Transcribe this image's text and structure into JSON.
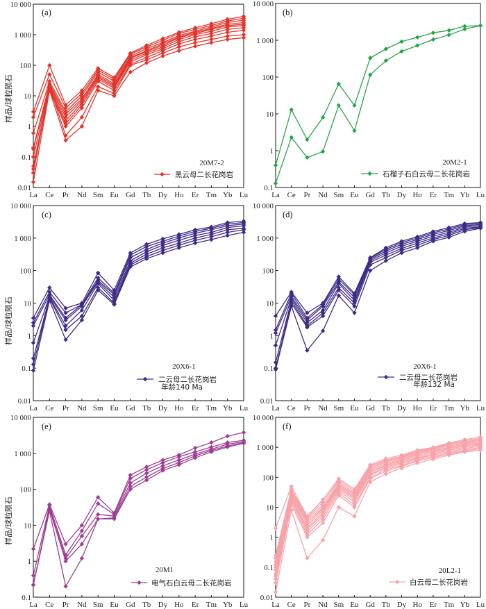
{
  "chart_data": [
    {
      "panel": "(a)",
      "type": "line",
      "yscale": "log",
      "ylim": [
        0.01,
        10000
      ],
      "ylabel": "样品/球粒陨石",
      "categories": [
        "La",
        "Ce",
        "Pr",
        "Nd",
        "Sm",
        "Eu",
        "Gd",
        "Tb",
        "Dy",
        "Ho",
        "Er",
        "Tm",
        "Yb",
        "Lu"
      ],
      "yticks": [
        {
          "value": 10000,
          "label": "10 000"
        },
        {
          "value": 1000,
          "label": "1 000"
        },
        {
          "value": 100,
          "label": "100"
        },
        {
          "value": 10,
          "label": "10"
        },
        {
          "value": 1,
          "label": "1"
        },
        {
          "value": 0.1,
          "label": "0.1"
        },
        {
          "value": 0.01,
          "label": "0.01"
        }
      ],
      "sample": "20M7-2",
      "legend": "黑云母二长花岗岩",
      "color": "#e2342c",
      "series": [
        {
          "values": [
            3,
            100,
            5,
            15,
            80,
            40,
            250,
            450,
            750,
            1200,
            1700,
            2300,
            3200,
            4000
          ]
        },
        {
          "values": [
            2,
            50,
            4,
            12,
            70,
            35,
            230,
            400,
            650,
            1100,
            1500,
            2000,
            2800,
            3500
          ]
        },
        {
          "values": [
            0.6,
            30,
            3,
            10,
            60,
            30,
            200,
            350,
            550,
            950,
            1300,
            1800,
            2500,
            3000
          ]
        },
        {
          "values": [
            0.2,
            25,
            2.5,
            8,
            50,
            25,
            180,
            300,
            500,
            850,
            1200,
            1600,
            2200,
            2500
          ]
        },
        {
          "values": [
            0.18,
            22,
            2,
            7,
            45,
            22,
            170,
            280,
            450,
            800,
            1100,
            1500,
            2000,
            2200
          ]
        },
        {
          "values": [
            0.1,
            20,
            1.5,
            6,
            40,
            20,
            150,
            250,
            400,
            700,
            1000,
            1300,
            1800,
            2000
          ]
        },
        {
          "values": [
            0.05,
            18,
            1.2,
            5,
            35,
            18,
            130,
            220,
            350,
            600,
            850,
            1100,
            1500,
            1700
          ]
        },
        {
          "values": [
            0.04,
            15,
            1,
            4,
            30,
            15,
            110,
            180,
            300,
            500,
            700,
            900,
            1200,
            1400
          ]
        },
        {
          "values": [
            0.03,
            20,
            0.5,
            2,
            20,
            12,
            100,
            150,
            250,
            400,
            550,
            700,
            900,
            1000
          ]
        },
        {
          "values": [
            0.015,
            15,
            0.35,
            1,
            15,
            10,
            60,
            120,
            200,
            300,
            420,
            550,
            700,
            800
          ]
        }
      ]
    },
    {
      "panel": "(b)",
      "type": "line",
      "yscale": "log",
      "ylim": [
        0.1,
        10000
      ],
      "ylabel": "",
      "categories": [
        "La",
        "Ce",
        "Pr",
        "Nd",
        "Sm",
        "Eu",
        "Gd",
        "Tb",
        "Dy",
        "Ho",
        "Er",
        "Tm",
        "Yb",
        "Lu"
      ],
      "yticks": [
        {
          "value": 10000,
          "label": "10 000"
        },
        {
          "value": 1000,
          "label": "1 000"
        },
        {
          "value": 100,
          "label": "100"
        },
        {
          "value": 10,
          "label": "10"
        },
        {
          "value": 1,
          "label": "1"
        },
        {
          "value": 0.1,
          "label": "0.1"
        }
      ],
      "sample": "20M2-1",
      "legend": "石榴子石白云母二长花岗岩",
      "color": "#23a544",
      "series": [
        {
          "values": [
            0.4,
            13,
            2,
            8,
            65,
            17,
            330,
            580,
            920,
            1200,
            1600,
            1850,
            2400,
            2500
          ]
        },
        {
          "values": [
            0.13,
            2.3,
            0.65,
            0.95,
            17,
            3.5,
            115,
            280,
            500,
            720,
            1050,
            1400,
            2000,
            2500
          ]
        }
      ]
    },
    {
      "panel": "(c)",
      "type": "line",
      "yscale": "log",
      "ylim": [
        0.01,
        10000
      ],
      "ylabel": "样品/球粒陨石",
      "categories": [
        "La",
        "Ce",
        "Pr",
        "Nd",
        "Sm",
        "Eu",
        "Gd",
        "Tb",
        "Dy",
        "Ho",
        "Er",
        "Tm",
        "Yb",
        "Lu"
      ],
      "yticks": [
        {
          "value": 10000,
          "label": "10 000"
        },
        {
          "value": 1000,
          "label": "1 000"
        },
        {
          "value": 100,
          "label": "100"
        },
        {
          "value": 10,
          "label": "10"
        },
        {
          "value": 1,
          "label": "1"
        },
        {
          "value": 0.1,
          "label": "0.1"
        },
        {
          "value": 0.01,
          "label": "0.01"
        }
      ],
      "sample": "20X6-1",
      "legend": "二云母二长花岗岩",
      "note": "年龄140 Ma",
      "color": "#3d2b86",
      "series": [
        {
          "values": [
            3.5,
            30,
            7,
            10,
            85,
            25,
            350,
            650,
            950,
            1300,
            1800,
            2200,
            3000,
            3300
          ]
        },
        {
          "values": [
            2.5,
            22,
            5,
            9,
            60,
            20,
            300,
            550,
            800,
            1150,
            1600,
            2000,
            2700,
            3000
          ]
        },
        {
          "values": [
            2,
            18,
            3.5,
            9,
            50,
            18,
            250,
            450,
            700,
            1000,
            1400,
            1800,
            2400,
            2700
          ]
        },
        {
          "values": [
            0.6,
            16,
            3,
            8,
            45,
            15,
            200,
            380,
            600,
            850,
            1200,
            1500,
            2100,
            2400
          ]
        },
        {
          "values": [
            0.2,
            15,
            2,
            6,
            40,
            12,
            170,
            320,
            500,
            700,
            1000,
            1300,
            1800,
            2000
          ]
        },
        {
          "values": [
            0.13,
            14,
            1.5,
            4,
            30,
            10,
            150,
            270,
            420,
            600,
            850,
            1100,
            1500,
            1800
          ]
        },
        {
          "values": [
            0.085,
            12,
            0.75,
            3,
            25,
            9,
            130,
            230,
            350,
            500,
            700,
            900,
            1200,
            1500
          ]
        }
      ]
    },
    {
      "panel": "(d)",
      "type": "line",
      "yscale": "log",
      "ylim": [
        0.01,
        10000
      ],
      "ylabel": "",
      "categories": [
        "La",
        "Ce",
        "Pr",
        "Nd",
        "Sm",
        "Eu",
        "Gd",
        "Tb",
        "Dy",
        "Ho",
        "Er",
        "Tm",
        "Yb",
        "Lu"
      ],
      "yticks": [
        {
          "value": 10000,
          "label": "10 000"
        },
        {
          "value": 1000,
          "label": "1 000"
        },
        {
          "value": 100,
          "label": "100"
        },
        {
          "value": 10,
          "label": "10"
        },
        {
          "value": 1,
          "label": "1"
        },
        {
          "value": 0.1,
          "label": "0.1"
        },
        {
          "value": 0.01,
          "label": "0.01"
        }
      ],
      "sample": "20X6-1",
      "legend": "二云母二长花岗岩",
      "note": "年龄132 Ma",
      "color": "#3d2b86",
      "series": [
        {
          "values": [
            4,
            22,
            5,
            10,
            65,
            20,
            250,
            500,
            800,
            1100,
            1600,
            2100,
            2800,
            3000
          ]
        },
        {
          "values": [
            1.5,
            20,
            3.5,
            9,
            55,
            18,
            240,
            450,
            720,
            1000,
            1450,
            1900,
            2600,
            2800
          ]
        },
        {
          "values": [
            1.2,
            16,
            3,
            8,
            45,
            15,
            220,
            400,
            640,
            900,
            1300,
            1700,
            2400,
            2600
          ]
        },
        {
          "values": [
            0.5,
            14,
            2.5,
            6,
            40,
            12,
            200,
            350,
            560,
            800,
            1150,
            1500,
            2200,
            2400
          ]
        },
        {
          "values": [
            0.15,
            12,
            2,
            5,
            30,
            10,
            180,
            300,
            480,
            700,
            1000,
            1350,
            2000,
            2200
          ]
        },
        {
          "values": [
            0.1,
            10,
            1.8,
            4,
            25,
            8,
            150,
            250,
            420,
            600,
            900,
            1200,
            1800,
            2100
          ]
        },
        {
          "values": [
            0.09,
            8,
            0.35,
            1.4,
            17,
            5,
            100,
            200,
            350,
            500,
            800,
            1050,
            1600,
            2000
          ]
        }
      ]
    },
    {
      "panel": "(e)",
      "type": "line",
      "yscale": "log",
      "ylim": [
        0.1,
        10000
      ],
      "ylabel": "样品/球粒陨石",
      "categories": [
        "La",
        "Ce",
        "Pr",
        "Nd",
        "Sm",
        "Eu",
        "Gd",
        "Tb",
        "Dy",
        "Ho",
        "Er",
        "Tm",
        "Yb",
        "Lu"
      ],
      "yticks": [
        {
          "value": 10000,
          "label": "10 000"
        },
        {
          "value": 1000,
          "label": "1 000"
        },
        {
          "value": 100,
          "label": "100"
        },
        {
          "value": 10,
          "label": "10"
        },
        {
          "value": 1,
          "label": "1"
        },
        {
          "value": 0.1,
          "label": "0.1"
        }
      ],
      "sample": "20M1",
      "legend": "电气石白云母二长花岗岩",
      "color": "#9e3e92",
      "series": [
        {
          "values": [
            2.2,
            38,
            3,
            10,
            60,
            22,
            250,
            420,
            650,
            900,
            1400,
            2000,
            3000,
            3800
          ]
        },
        {
          "values": [
            0.4,
            35,
            1.5,
            7,
            40,
            20,
            200,
            350,
            550,
            800,
            1100,
            1500,
            2000,
            2300
          ]
        },
        {
          "values": [
            0.22,
            30,
            1.2,
            5,
            20,
            18,
            150,
            280,
            450,
            650,
            950,
            1300,
            1800,
            2100
          ]
        },
        {
          "values": [
            0.22,
            28,
            1,
            3,
            15,
            16,
            120,
            220,
            380,
            550,
            850,
            1200,
            1600,
            2000
          ]
        },
        {
          "values": [
            0.22,
            25,
            0.2,
            1.2,
            15,
            15,
            100,
            180,
            330,
            480,
            750,
            1100,
            1500,
            1900
          ]
        }
      ]
    },
    {
      "panel": "(f)",
      "type": "line",
      "yscale": "log",
      "ylim": [
        0.01,
        10000
      ],
      "ylabel": "",
      "categories": [
        "La",
        "Ce",
        "Pr",
        "Nd",
        "Sm",
        "Eu",
        "Gd",
        "Tb",
        "Dy",
        "Ho",
        "Er",
        "Tm",
        "Yb",
        "Lu"
      ],
      "yticks": [
        {
          "value": 10000,
          "label": "10 000"
        },
        {
          "value": 1000,
          "label": "1 000"
        },
        {
          "value": 100,
          "label": "100"
        },
        {
          "value": 10,
          "label": "10"
        },
        {
          "value": 1,
          "label": "1"
        },
        {
          "value": 0.1,
          "label": "0.1"
        },
        {
          "value": 0.01,
          "label": "0.01"
        }
      ],
      "sample": "20L2-1",
      "legend": "白云母二长花岗岩",
      "color": "#f6a3aa",
      "series": [
        {
          "values": [
            2,
            50,
            5,
            18,
            90,
            40,
            260,
            420,
            550,
            800,
            1000,
            1400,
            1800,
            2200
          ]
        },
        {
          "values": [
            0.25,
            40,
            4.5,
            15,
            80,
            35,
            240,
            380,
            500,
            750,
            950,
            1300,
            1650,
            2000
          ]
        },
        {
          "values": [
            0.2,
            35,
            4,
            12,
            70,
            30,
            220,
            350,
            470,
            700,
            900,
            1200,
            1500,
            1850
          ]
        },
        {
          "values": [
            0.15,
            30,
            3.5,
            10,
            60,
            28,
            200,
            320,
            440,
            650,
            850,
            1100,
            1400,
            1700
          ]
        },
        {
          "values": [
            0.12,
            28,
            3,
            9,
            55,
            25,
            180,
            290,
            400,
            600,
            780,
            1000,
            1300,
            1550
          ]
        },
        {
          "values": [
            0.1,
            25,
            2.5,
            8,
            50,
            22,
            160,
            260,
            370,
            550,
            720,
            950,
            1200,
            1400
          ]
        },
        {
          "values": [
            0.08,
            22,
            2,
            7,
            45,
            20,
            150,
            240,
            340,
            500,
            660,
            880,
            1100,
            1300
          ]
        },
        {
          "values": [
            0.06,
            20,
            1.8,
            6,
            40,
            18,
            130,
            220,
            310,
            450,
            600,
            800,
            1000,
            1200
          ]
        },
        {
          "values": [
            0.05,
            18,
            1.5,
            5,
            35,
            15,
            120,
            200,
            280,
            420,
            550,
            720,
            900,
            1100
          ]
        },
        {
          "values": [
            0.04,
            15,
            1.2,
            4,
            30,
            12,
            100,
            180,
            250,
            380,
            500,
            650,
            800,
            1000
          ]
        },
        {
          "values": [
            0.03,
            12,
            1,
            3,
            25,
            10,
            90,
            160,
            230,
            350,
            450,
            600,
            750,
            900
          ]
        },
        {
          "values": [
            0.015,
            8,
            0.2,
            0.8,
            10,
            5,
            70,
            130,
            200,
            300,
            400,
            550,
            700,
            800
          ]
        }
      ]
    }
  ]
}
